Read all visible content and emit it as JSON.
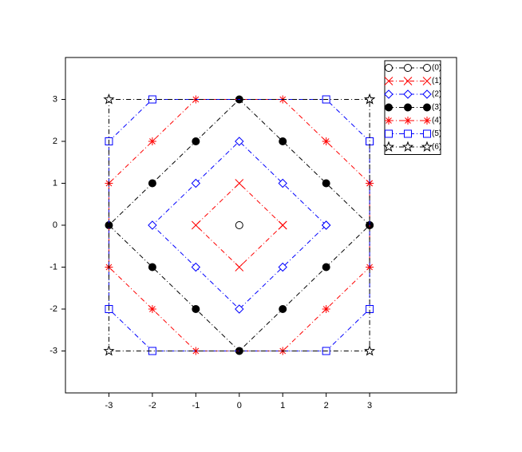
{
  "chart_data": {
    "type": "line",
    "xlim": [
      -4,
      5
    ],
    "ylim": [
      -4,
      4
    ],
    "xticks": [
      -3,
      -2,
      -1,
      0,
      1,
      2,
      3
    ],
    "yticks": [
      -3,
      -2,
      -1,
      0,
      1,
      2,
      3
    ],
    "legend": "upper right",
    "series": [
      {
        "name": "(0)",
        "color": "#000000",
        "marker": "circle",
        "x": [
          0
        ],
        "y": [
          0
        ]
      },
      {
        "name": "(1)",
        "color": "#ff0000",
        "marker": "x",
        "x": [
          1,
          0,
          -1,
          0,
          1
        ],
        "y": [
          0,
          1,
          0,
          -1,
          0
        ]
      },
      {
        "name": "(2)",
        "color": "#0000ff",
        "marker": "diamond",
        "x": [
          2,
          1,
          0,
          -1,
          -2,
          -1,
          0,
          1,
          2
        ],
        "y": [
          0,
          1,
          2,
          1,
          0,
          -1,
          -2,
          -1,
          0
        ]
      },
      {
        "name": "(3)",
        "color": "#000000",
        "marker": "filled-circle",
        "x": [
          3,
          2,
          1,
          0,
          -1,
          -2,
          -3,
          -2,
          -1,
          0,
          1,
          2,
          3
        ],
        "y": [
          0,
          1,
          2,
          3,
          2,
          1,
          0,
          -1,
          -2,
          -3,
          -2,
          -1,
          0
        ]
      },
      {
        "name": "(4)",
        "color": "#ff0000",
        "marker": "asterisk",
        "x": [
          3,
          2,
          1,
          -1,
          -2,
          -3,
          -3,
          -2,
          -1,
          1,
          2,
          3,
          3
        ],
        "y": [
          1,
          2,
          3,
          3,
          2,
          1,
          -1,
          -2,
          -3,
          -3,
          -2,
          -1,
          1
        ]
      },
      {
        "name": "(5)",
        "color": "#0000ff",
        "marker": "square",
        "x": [
          3,
          2,
          -2,
          -3,
          -3,
          -2,
          2,
          3,
          3
        ],
        "y": [
          2,
          3,
          3,
          2,
          -2,
          -3,
          -3,
          -2,
          2
        ]
      },
      {
        "name": "(6)",
        "color": "#000000",
        "marker": "star",
        "x": [
          3,
          -3,
          -3,
          3,
          3
        ],
        "y": [
          3,
          3,
          -3,
          -3,
          3
        ]
      }
    ]
  }
}
